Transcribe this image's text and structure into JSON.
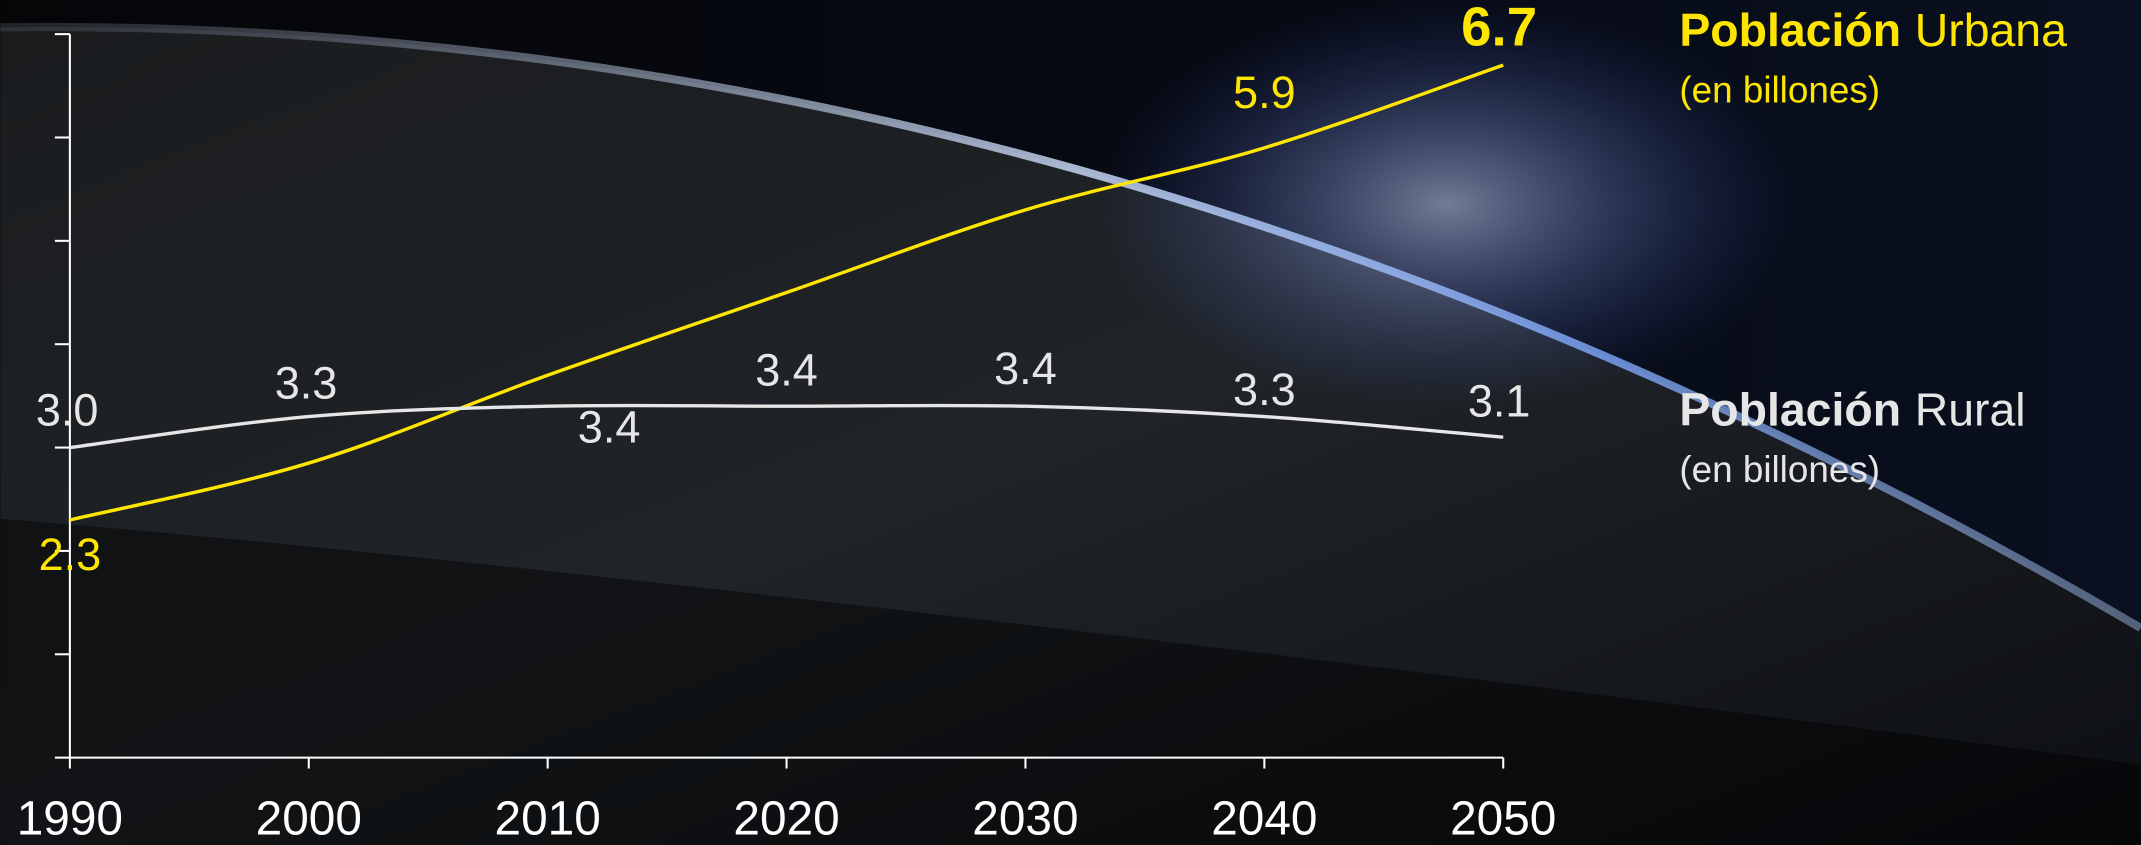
{
  "chart_data": {
    "type": "line",
    "x": [
      1990,
      2000,
      2010,
      2020,
      2030,
      2040,
      2050
    ],
    "xlim": [
      1990,
      2050
    ],
    "xticks": [
      1990,
      2000,
      2010,
      2020,
      2030,
      2040,
      2050
    ],
    "ylim": [
      0,
      7
    ],
    "yticks": [
      0,
      1,
      2,
      3,
      4,
      5,
      6,
      7
    ],
    "series": [
      {
        "label_strong": "Población",
        "label": "Urbana",
        "note": "(en billones)",
        "color": "#ffe600",
        "values": [
          2.3,
          2.85,
          3.7,
          4.5,
          5.3,
          5.9,
          6.7
        ],
        "value_labels": [
          "2.3",
          null,
          null,
          null,
          null,
          "5.9",
          "6.7"
        ]
      },
      {
        "label_strong": "Población",
        "label": "Rural",
        "note": "(en billones)",
        "color": "#e6e6e6",
        "values": [
          3.0,
          3.3,
          3.4,
          3.4,
          3.4,
          3.3,
          3.1
        ],
        "value_labels": [
          "3.0",
          "3.3",
          "3.4",
          "3.4",
          "3.4",
          "3.3",
          "3.1"
        ]
      }
    ]
  }
}
